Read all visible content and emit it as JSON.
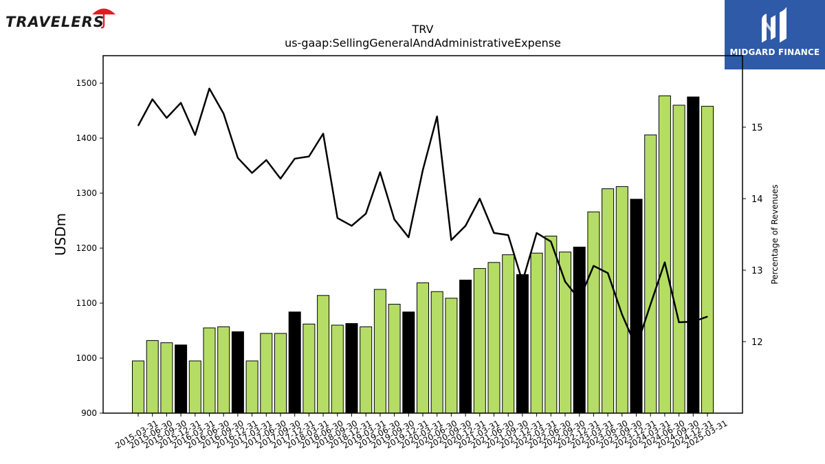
{
  "logos": {
    "left_text": "TRAVELERS",
    "right_text": "MIDGARD FINANCE"
  },
  "colors": {
    "bar_default": "#b5dd66",
    "bar_highlight": "#000000",
    "line": "#000000",
    "logo_red": "#e31b23",
    "logo_right_bg": "#2e5aa8"
  },
  "chart_data": {
    "type": "bar",
    "title": "TRV",
    "subtitle": "us-gaap:SellingGeneralAndAdministrativeExpense",
    "ylabel": "USDm",
    "y2label": "Percentage of Revenues",
    "ylim": [
      900,
      1550
    ],
    "yticks": [
      900,
      1000,
      1100,
      1200,
      1300,
      1400,
      1500
    ],
    "y2lim": [
      11.0,
      16.0
    ],
    "y2ticks": [
      12,
      13,
      14,
      15
    ],
    "grid": false,
    "categories": [
      "2015-03-31",
      "2015-06-30",
      "2015-09-30",
      "2015-12-31",
      "2016-03-31",
      "2016-06-30",
      "2016-09-30",
      "2016-12-31",
      "2017-03-31",
      "2017-06-30",
      "2017-09-30",
      "2017-12-31",
      "2018-03-31",
      "2018-06-30",
      "2018-09-30",
      "2018-12-31",
      "2019-03-31",
      "2019-06-30",
      "2019-09-30",
      "2019-12-31",
      "2020-03-31",
      "2020-06-30",
      "2020-09-30",
      "2020-12-31",
      "2021-03-31",
      "2021-06-30",
      "2021-09-30",
      "2021-12-31",
      "2022-03-31",
      "2022-06-30",
      "2022-09-30",
      "2022-12-31",
      "2023-03-31",
      "2023-06-30",
      "2023-09-30",
      "2023-12-31",
      "2024-03-31",
      "2024-06-30",
      "2024-09-30",
      "2024-12-31",
      "2025-03-31"
    ],
    "series": [
      {
        "kind": "bar",
        "values": [
          995,
          1032,
          1028,
          1024,
          995,
          1055,
          1057,
          1048,
          995,
          1045,
          1045,
          1084,
          1062,
          1114,
          1060,
          1063,
          1057,
          1125,
          1098,
          1084,
          1137,
          1121,
          1109,
          1142,
          1163,
          1174,
          1188,
          1152,
          1191,
          1222,
          1193,
          1202,
          1266,
          1308,
          1312,
          1289,
          1406,
          1477,
          1460,
          1475,
          1458
        ],
        "highlight": [
          false,
          false,
          false,
          true,
          false,
          false,
          false,
          true,
          false,
          false,
          false,
          true,
          false,
          false,
          false,
          true,
          false,
          false,
          false,
          true,
          false,
          false,
          false,
          true,
          false,
          false,
          false,
          true,
          false,
          false,
          false,
          true,
          false,
          false,
          false,
          true,
          false,
          false,
          false,
          true,
          false
        ]
      },
      {
        "kind": "line",
        "axis": "right",
        "values": [
          15.02,
          15.39,
          15.13,
          15.34,
          14.89,
          15.54,
          15.19,
          14.57,
          14.36,
          14.54,
          14.28,
          14.56,
          14.59,
          14.91,
          13.73,
          13.62,
          13.79,
          14.37,
          13.71,
          13.46,
          14.4,
          15.15,
          13.42,
          13.62,
          14.0,
          13.52,
          13.49,
          12.84,
          13.52,
          13.4,
          12.84,
          12.59,
          13.06,
          12.96,
          12.38,
          11.92,
          12.52,
          13.11,
          12.27,
          12.28,
          12.35
        ]
      }
    ]
  }
}
